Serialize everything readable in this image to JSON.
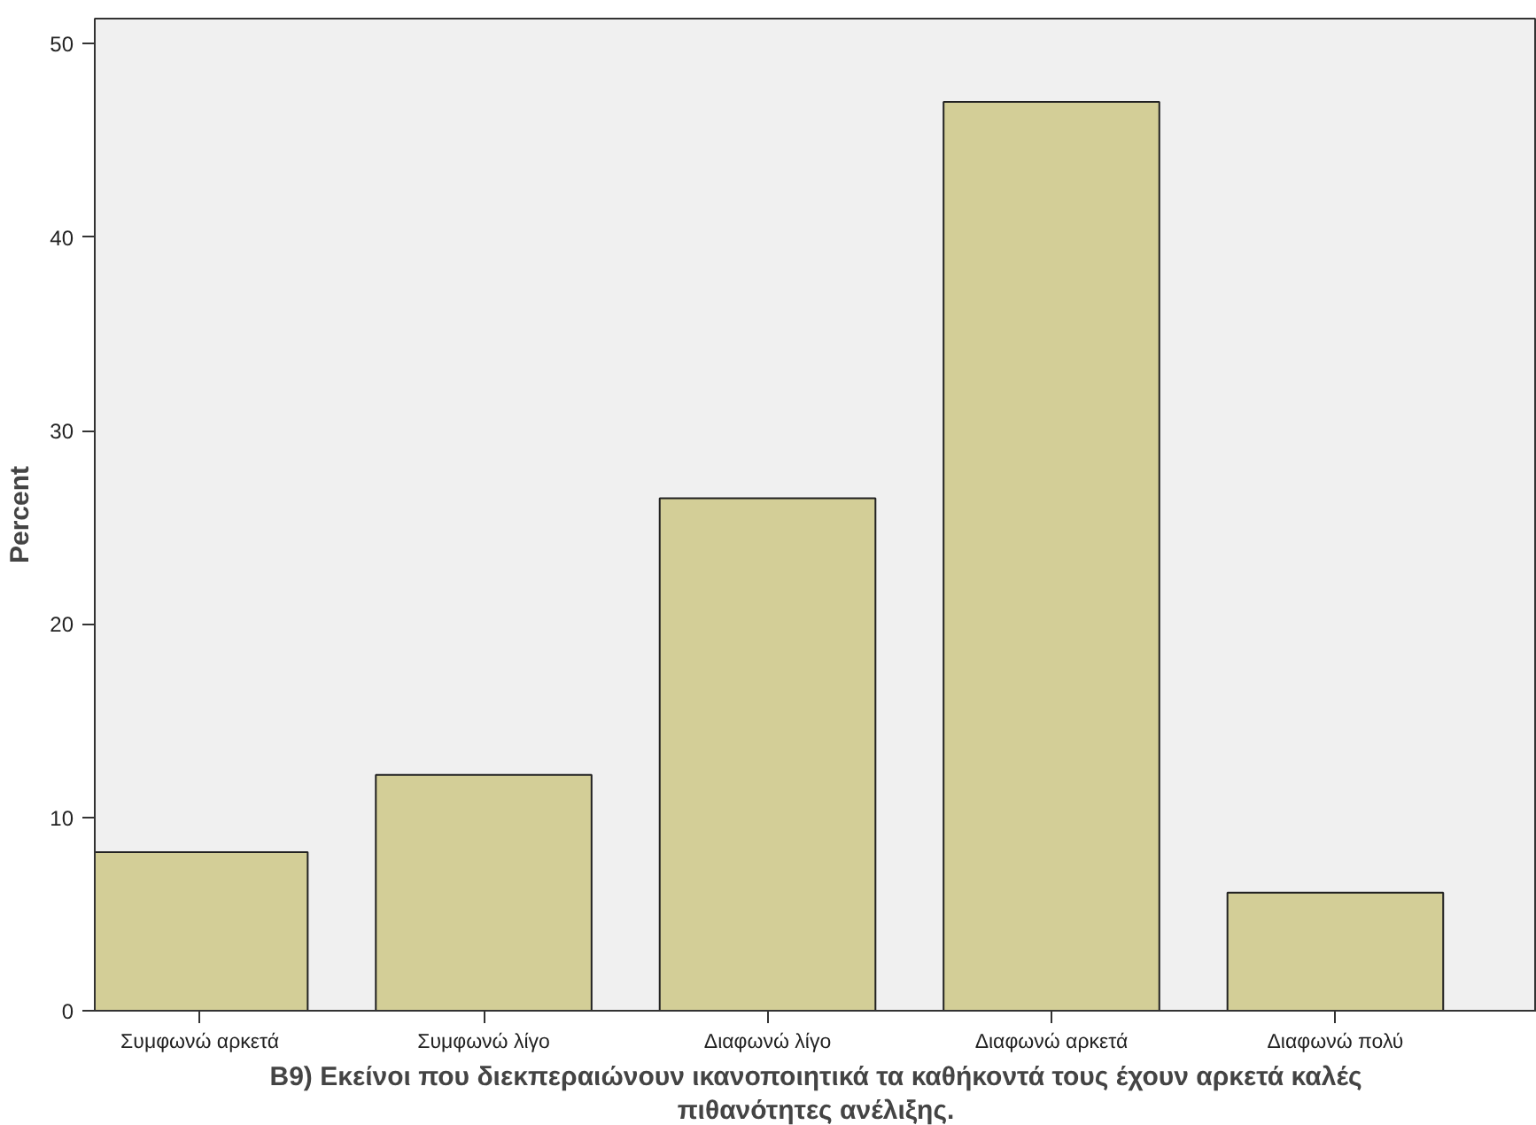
{
  "chart_data": {
    "type": "bar",
    "xlabel": "B9) Εκείνοι που διεκπεραιώνουν ικανοποιητικά τα καθήκοντά τους έχουν αρκετά καλές πιθανότητες ανέλιξης.",
    "ylabel": "Percent",
    "categories": [
      "Συμφωνώ αρκετά",
      "Συμφωνώ λίγο",
      "Διαφωνώ λίγο",
      "Διαφωνώ αρκετά",
      "Διαφωνώ πολύ"
    ],
    "values": [
      8.2,
      12.2,
      26.5,
      47.0,
      6.1
    ],
    "color": "#d3ce97",
    "ylim": [
      0,
      51.3
    ],
    "yticks": [
      0,
      10,
      20,
      30,
      40,
      50
    ],
    "grid": false
  }
}
